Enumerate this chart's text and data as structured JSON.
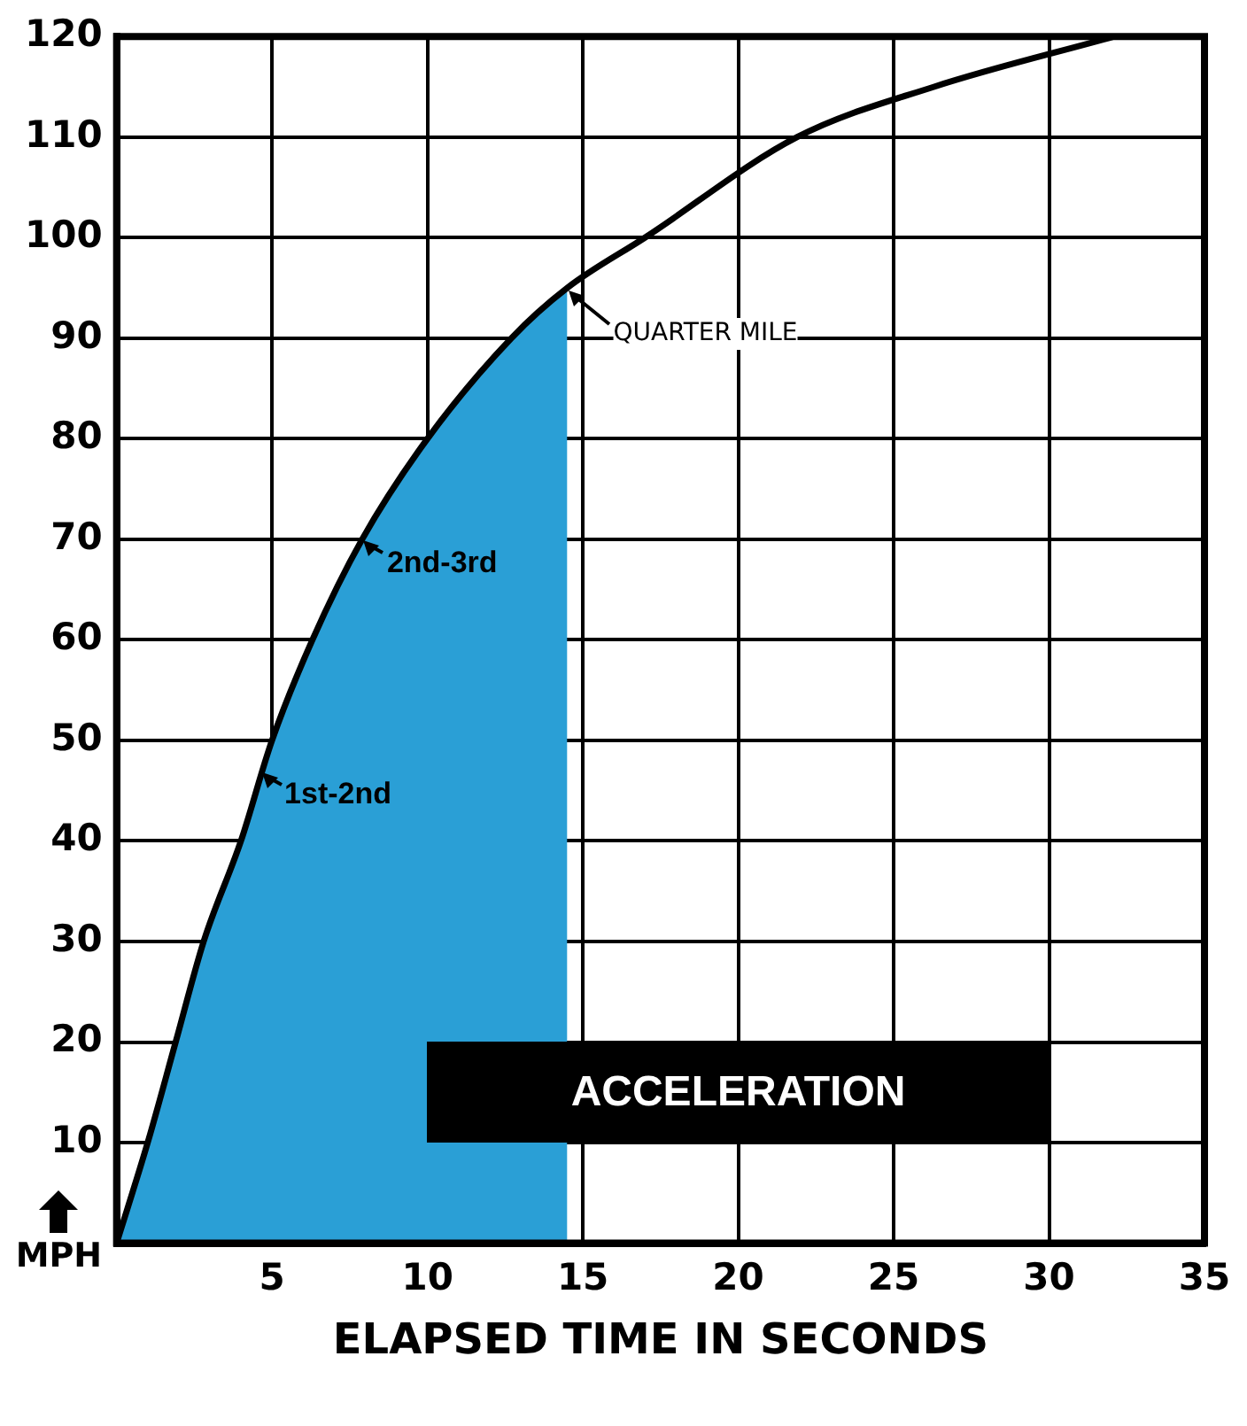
{
  "chart_data": {
    "type": "line",
    "xlabel": "ELAPSED TIME IN SECONDS",
    "ylabel": "MPH",
    "xlim": [
      0,
      35
    ],
    "ylim": [
      0,
      120
    ],
    "xticks": [
      5,
      10,
      15,
      20,
      25,
      30,
      35
    ],
    "yticks": [
      10,
      20,
      30,
      40,
      50,
      60,
      70,
      80,
      90,
      100,
      110,
      120
    ],
    "grid": true,
    "legend": false,
    "marker": "none",
    "line_style": "solid",
    "series": [
      {
        "type": "area",
        "color": "#2a9fd6",
        "x": [
          0,
          1,
          1.9,
          2.8,
          4,
          5,
          6.3,
          7.9,
          10,
          12.7,
          14.5
        ],
        "values": [
          0,
          10,
          20,
          30,
          40,
          50,
          60,
          70,
          80,
          90,
          95
        ]
      },
      {
        "color": "#000000",
        "x": [
          0,
          1,
          1.9,
          2.8,
          4,
          5,
          6.3,
          7.9,
          10,
          12.7,
          14.5,
          17,
          21.9,
          26.3,
          32.1
        ],
        "values": [
          0,
          10,
          20,
          30,
          40,
          50,
          60,
          70,
          80,
          90,
          95,
          100,
          110,
          115,
          120
        ]
      }
    ],
    "annotations": [
      {
        "text": "QUARTER MILE",
        "x": 14.5,
        "y": 95
      },
      {
        "text": "2nd-3rd",
        "x": 7.9,
        "y": 70
      },
      {
        "text": "1st-2nd",
        "x": 4.6,
        "y": 47
      },
      "ACCELERATION"
    ]
  }
}
